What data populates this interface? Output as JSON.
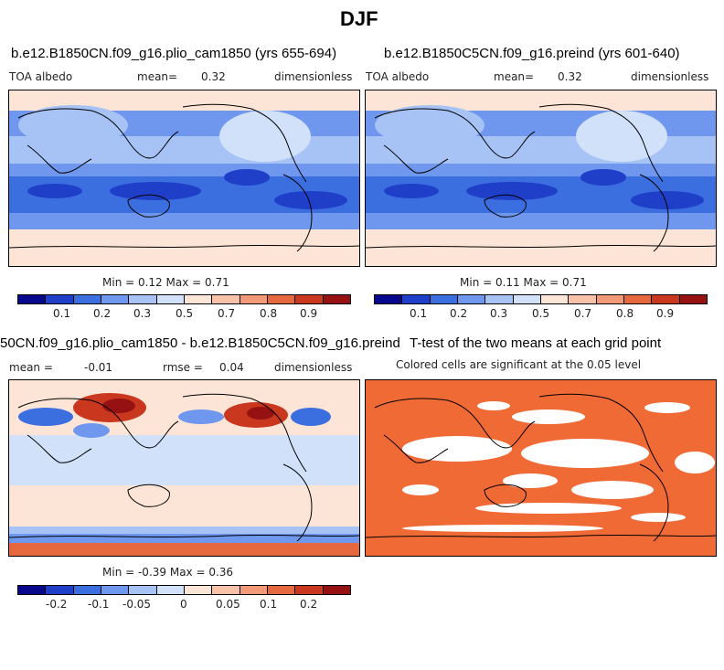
{
  "title": "DJF",
  "panels": {
    "p1": {
      "title": "b.e12.B1850CN.f09_g16.plio_cam1850 (yrs 655-694)",
      "variable": "TOA albedo",
      "mean_label": "mean=",
      "mean_value": "0.32",
      "units": "dimensionless",
      "minmax": "Min =   0.12 Max =   0.71"
    },
    "p2": {
      "title": "b.e12.B1850C5CN.f09_g16.preind (yrs 601-640)",
      "variable": "TOA albedo",
      "mean_label": "mean=",
      "mean_value": "0.32",
      "units": "dimensionless",
      "minmax": "Min =   0.11 Max =   0.71"
    },
    "p3": {
      "title": "50CN.f09_g16.plio_cam1850 - b.e12.B1850C5CN.f09_g16.preind",
      "mean_label": "mean =",
      "mean_value": "-0.01",
      "rmse_label": "rmse =",
      "rmse_value": "0.04",
      "units": "dimensionless",
      "minmax": "Min =  -0.39 Max =   0.36"
    },
    "p4": {
      "title": "T-test of the two means at each grid point",
      "subtitle": "Colored cells are significant at the 0.05 level"
    }
  },
  "colorbars": {
    "abs": {
      "colors": [
        "#08088c",
        "#1f3fc8",
        "#3b6fe0",
        "#6f97ee",
        "#a7c3f5",
        "#d2e1fa",
        "#fce4d6",
        "#f8c2a8",
        "#f29a78",
        "#e5683f",
        "#c9371f",
        "#961111"
      ],
      "ticks": [
        "0.1",
        "0.2",
        "0.3",
        "0.5",
        "0.7",
        "0.8",
        "0.9"
      ]
    },
    "diff": {
      "colors": [
        "#08088c",
        "#1f3fc8",
        "#3b6fe0",
        "#6f97ee",
        "#a7c3f5",
        "#d2e1fa",
        "#fce4d6",
        "#f8c2a8",
        "#f29a78",
        "#e5683f",
        "#c9371f",
        "#961111"
      ],
      "ticks": [
        "-0.2",
        "-0.1",
        "-0.05",
        "0",
        "0.05",
        "0.1",
        "0.2"
      ]
    }
  },
  "ttest_color": "#f06a35"
}
